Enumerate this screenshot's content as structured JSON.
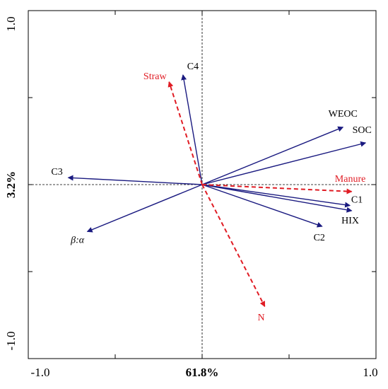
{
  "chart_data": {
    "type": "biplot",
    "xlabel": "61.8%",
    "ylabel": "3.2%",
    "xlim": [
      -1.0,
      1.0
    ],
    "ylim": [
      -1.0,
      1.0
    ],
    "x_ticks": [
      "-1.0",
      "1.0"
    ],
    "y_ticks": [
      "1.0",
      "-1.0"
    ],
    "grid": false,
    "colors": {
      "response": "#1a1a80",
      "explanatory": "#e01c24"
    },
    "response_vectors": [
      {
        "name": "C4",
        "x": -0.11,
        "y": 0.63
      },
      {
        "name": "WEOC",
        "x": 0.81,
        "y": 0.33
      },
      {
        "name": "SOC",
        "x": 0.94,
        "y": 0.24
      },
      {
        "name": "C3",
        "x": -0.77,
        "y": 0.04
      },
      {
        "name": "C1",
        "x": 0.85,
        "y": -0.12
      },
      {
        "name": "HIX",
        "x": 0.86,
        "y": -0.15
      },
      {
        "name": "C2",
        "x": 0.69,
        "y": -0.24
      },
      {
        "name": "β:α",
        "x": -0.66,
        "y": -0.27
      }
    ],
    "explanatory_vectors": [
      {
        "name": "Straw",
        "x": -0.19,
        "y": 0.59
      },
      {
        "name": "Manure",
        "x": 0.86,
        "y": -0.04
      },
      {
        "name": "N",
        "x": 0.36,
        "y": -0.7
      }
    ]
  }
}
